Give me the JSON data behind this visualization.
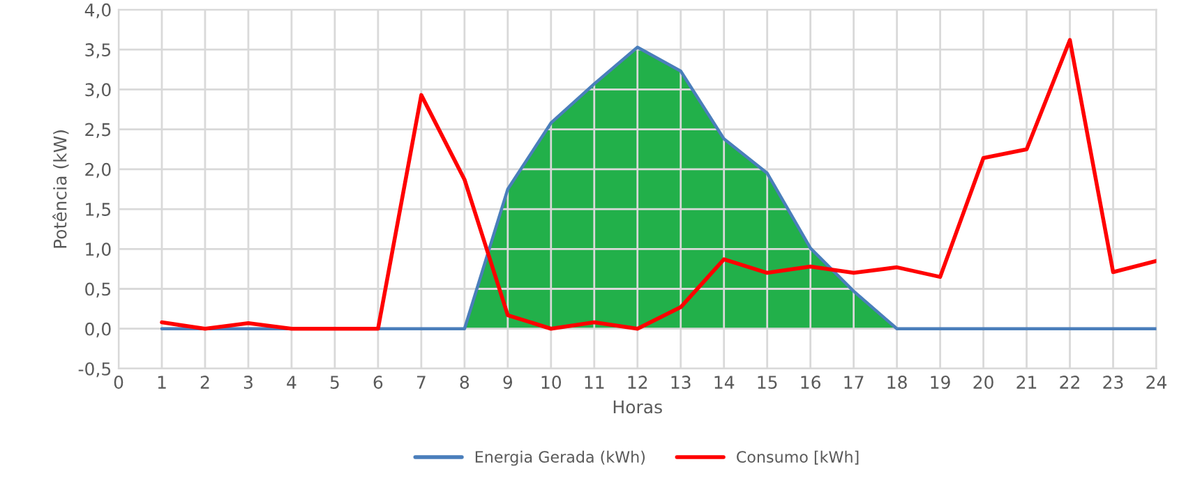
{
  "chart_data": {
    "type": "line",
    "xlabel": "Horas",
    "ylabel": "Potência (kW)",
    "x": [
      1,
      2,
      3,
      4,
      5,
      6,
      7,
      8,
      9,
      10,
      11,
      12,
      13,
      14,
      15,
      16,
      17,
      18,
      19,
      20,
      21,
      22,
      23,
      24
    ],
    "series": [
      {
        "type": "area",
        "color": "#22b04a",
        "x": [
          8,
          9,
          10,
          11,
          12,
          13,
          14,
          15,
          16,
          17,
          18
        ],
        "values": [
          0,
          1.75,
          2.58,
          3.07,
          3.53,
          3.23,
          2.38,
          1.95,
          1.01,
          0.47,
          0
        ]
      },
      {
        "name": "Energia Gerada (kWh)",
        "color": "#4a7ebb",
        "values": [
          0,
          0,
          0,
          0,
          0,
          0,
          0,
          0,
          1.75,
          2.58,
          3.07,
          3.53,
          3.23,
          2.38,
          1.95,
          1.01,
          0.47,
          0,
          0,
          0,
          0,
          0,
          0,
          0
        ]
      },
      {
        "name": "Consumo [kWh]",
        "color": "#ff0000",
        "values": [
          0.08,
          0,
          0.07,
          0,
          0,
          0,
          2.93,
          1.87,
          0.17,
          0,
          0.08,
          0,
          0.27,
          0.87,
          0.7,
          0.78,
          0.7,
          0.77,
          0.65,
          2.14,
          2.25,
          3.62,
          0.71,
          0.85
        ]
      }
    ],
    "xlim": [
      0,
      24
    ],
    "xticks": [
      0,
      1,
      2,
      3,
      4,
      5,
      6,
      7,
      8,
      9,
      10,
      11,
      12,
      13,
      14,
      15,
      16,
      17,
      18,
      19,
      20,
      21,
      22,
      23,
      24
    ],
    "ylim": [
      -0.5,
      4.0
    ],
    "yticks": [
      {
        "value": -0.5,
        "label": "-0,5"
      },
      {
        "value": 0,
        "label": "0,0"
      },
      {
        "value": 0.5,
        "label": "0,5"
      },
      {
        "value": 1,
        "label": "1,0"
      },
      {
        "value": 1.5,
        "label": "1,5"
      },
      {
        "value": 2,
        "label": "2,0"
      },
      {
        "value": 2.5,
        "label": "2,5"
      },
      {
        "value": 3,
        "label": "3,0"
      },
      {
        "value": 3.5,
        "label": "3,5"
      },
      {
        "value": 4,
        "label": "4,0"
      }
    ],
    "grid": true,
    "legend": "bottom"
  }
}
